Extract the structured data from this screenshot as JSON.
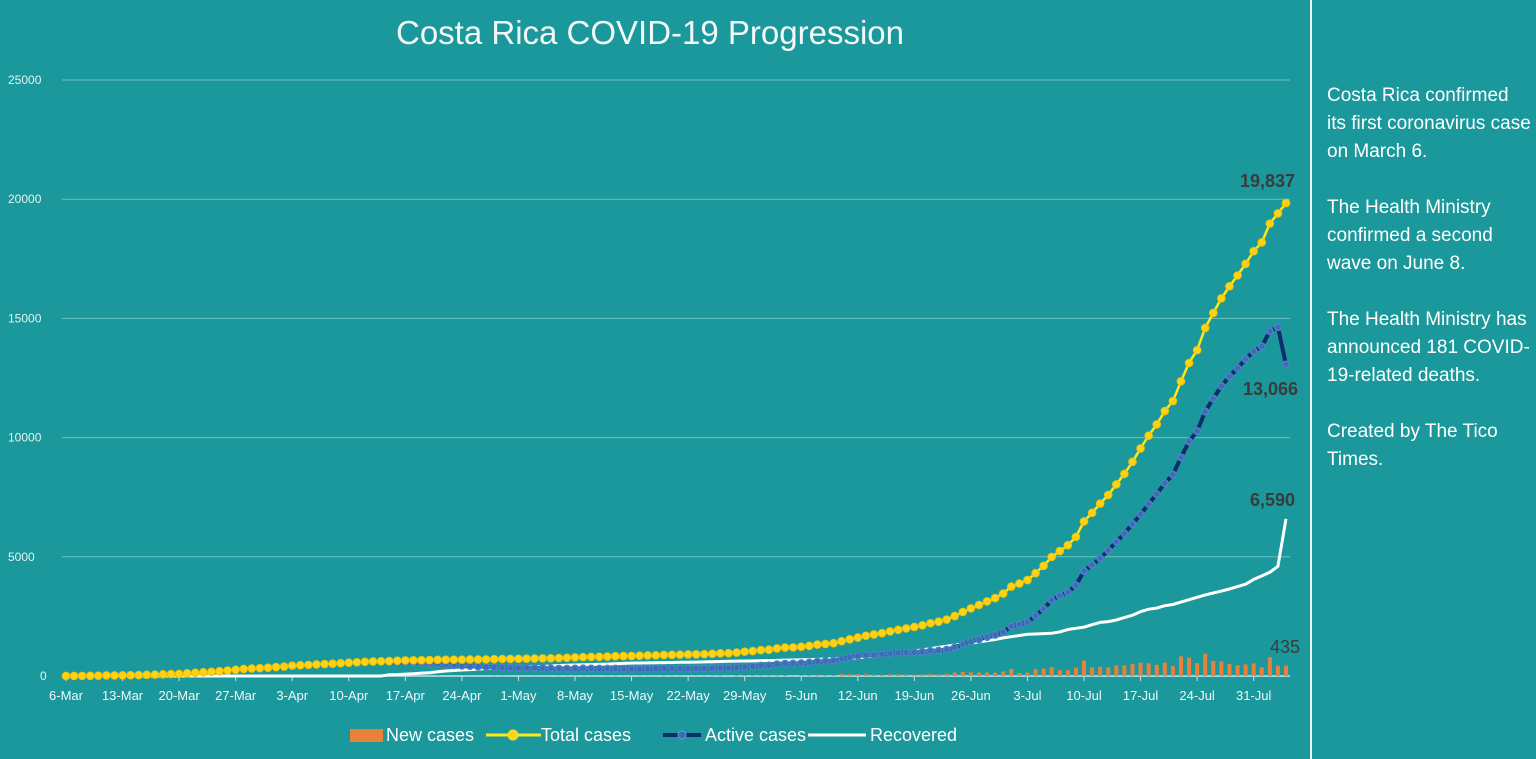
{
  "chart_data": {
    "type": "line",
    "title": "Costa Rica COVID-19 Progression",
    "xlabel": "",
    "ylabel": "",
    "ylim": [
      0,
      25000
    ],
    "y_ticks": [
      "0",
      "5000",
      "10000",
      "15000",
      "20000",
      "25000"
    ],
    "x_range": [
      "6-Mar",
      "4-Aug"
    ],
    "x_tick_labels": [
      "6-Mar",
      "13-Mar",
      "20-Mar",
      "27-Mar",
      "3-Apr",
      "10-Apr",
      "17-Apr",
      "24-Apr",
      "1-May",
      "8-May",
      "15-May",
      "22-May",
      "29-May",
      "5-Jun",
      "12-Jun",
      "19-Jun",
      "26-Jun",
      "3-Jul",
      "10-Jul",
      "17-Jul",
      "24-Jul",
      "31-Jul"
    ],
    "grid": "horizontal",
    "legend_position": "bottom",
    "series": [
      {
        "name": "New cases",
        "type": "bar",
        "color": "#e8813a",
        "last_label": "435",
        "values": [
          1,
          0,
          4,
          4,
          4,
          9,
          1,
          4,
          8,
          6,
          9,
          8,
          11,
          11,
          7,
          26,
          21,
          24,
          19,
          24,
          30,
          32,
          32,
          19,
          16,
          17,
          28,
          21,
          39,
          19,
          13,
          16,
          19,
          16,
          21,
          19,
          19,
          18,
          17,
          6,
          8,
          16,
          13,
          5,
          2,
          7,
          12,
          2,
          3,
          1,
          6,
          2,
          2,
          8,
          8,
          3,
          3,
          6,
          8,
          6,
          3,
          13,
          10,
          15,
          12,
          9,
          3,
          11,
          15,
          5,
          8,
          10,
          10,
          3,
          16,
          8,
          7,
          6,
          8,
          7,
          12,
          21,
          5,
          28,
          38,
          25,
          37,
          21,
          52,
          37,
          6,
          28,
          35,
          55,
          24,
          33,
          86,
          77,
          74,
          76,
          56,
          52,
          75,
          68,
          58,
          61,
          69,
          86,
          64,
          91,
          147,
          169,
          152,
          143,
          151,
          139,
          190,
          294,
          125,
          145,
          288,
          310,
          375,
          245,
          245,
          350,
          649,
          360,
          386,
          365,
          440,
          446,
          504,
          560,
          537,
          468,
          563,
          420,
          827,
          768,
          540,
          931,
          629,
          612,
          503,
          456,
          490,
          530,
          367,
          788,
          427,
          435
        ]
      },
      {
        "name": "Total cases",
        "type": "line",
        "color": "#ffe81a",
        "last_label": "19,837",
        "values": [
          1,
          1,
          5,
          9,
          13,
          22,
          23,
          27,
          35,
          41,
          50,
          58,
          69,
          80,
          87,
          113,
          134,
          158,
          177,
          201,
          231,
          263,
          295,
          314,
          330,
          347,
          375,
          396,
          435,
          454,
          467,
          483,
          502,
          518,
          539,
          558,
          577,
          595,
          612,
          618,
          626,
          642,
          655,
          660,
          662,
          669,
          681,
          683,
          686,
          687,
          693,
          695,
          697,
          705,
          713,
          716,
          719,
          725,
          733,
          739,
          742,
          755,
          765,
          780,
          792,
          801,
          804,
          815,
          830,
          835,
          843,
          853,
          863,
          866,
          882,
          890,
          897,
          903,
          911,
          918,
          930,
          951,
          956,
          984,
          1022,
          1047,
          1084,
          1105,
          1157,
          1194,
          1200,
          1228,
          1263,
          1318,
          1342,
          1375,
          1461,
          1538,
          1612,
          1688,
          1744,
          1796,
          1871,
          1939,
          1997,
          2058,
          2127,
          2213,
          2277,
          2368,
          2515,
          2684,
          2836,
          2979,
          3130,
          3269,
          3459,
          3753,
          3878,
          4023,
          4311,
          4621,
          4996,
          5241,
          5486,
          5836,
          6485,
          6845,
          7231,
          7596,
          8036,
          8482,
          8986,
          9546,
          10083,
          10551,
          11114,
          11534,
          12361,
          13129,
          13669,
          14600,
          15229,
          15841,
          16344,
          16800,
          17290,
          17820,
          18187,
          18975,
          19402,
          19837
        ]
      },
      {
        "name": "Active cases",
        "type": "line",
        "color": "#0e2d6a",
        "marker_color": "#4d82c8",
        "last_label": "13,066",
        "values": [
          1,
          1,
          5,
          9,
          13,
          22,
          23,
          27,
          35,
          41,
          50,
          58,
          69,
          80,
          87,
          113,
          134,
          156,
          175,
          199,
          229,
          261,
          293,
          312,
          328,
          345,
          373,
          394,
          433,
          451,
          464,
          480,
          499,
          515,
          536,
          555,
          574,
          592,
          609,
          615,
          570,
          579,
          571,
          559,
          536,
          523,
          495,
          467,
          450,
          431,
          417,
          399,
          381,
          369,
          362,
          350,
          343,
          339,
          337,
          333,
          316,
          309,
          309,
          314,
          316,
          315,
          308,
          309,
          309,
          299,
          297,
          302,
          307,
          305,
          316,
          319,
          312,
          313,
          316,
          318,
          320,
          331,
          326,
          349,
          382,
          402,
          434,
          445,
          492,
          519,
          520,
          538,
          563,
          608,
          622,
          645,
          716,
          783,
          842,
          876,
          882,
          904,
          939,
          967,
          985,
          996,
          1015,
          1051,
          1065,
          1105,
          1201,
          1330,
          1441,
          1534,
          1634,
          1722,
          1841,
          2085,
          2159,
          2254,
          2529,
          2816,
          3180,
          3363,
          3506,
          3803,
          4399,
          4657,
          4939,
          5270,
          5634,
          5976,
          6374,
          6780,
          7213,
          7626,
          8086,
          8449,
          9171,
          9834,
          10269,
          11093,
          11635,
          12160,
          12564,
          12911,
          13293,
          13617,
          13827,
          14460,
          14632,
          13066
        ]
      },
      {
        "name": "Recovered",
        "type": "line",
        "color": "#ffffff",
        "last_label": "6,590",
        "values": [
          0,
          0,
          0,
          0,
          0,
          0,
          0,
          0,
          0,
          0,
          0,
          0,
          0,
          0,
          0,
          0,
          0,
          0,
          0,
          0,
          0,
          0,
          0,
          0,
          0,
          0,
          0,
          0,
          0,
          0,
          0,
          0,
          0,
          0,
          0,
          0,
          0,
          0,
          0,
          0,
          53,
          60,
          80,
          95,
          120,
          140,
          180,
          210,
          230,
          250,
          270,
          290,
          310,
          330,
          345,
          360,
          370,
          380,
          390,
          400,
          420,
          440,
          450,
          460,
          470,
          480,
          490,
          500,
          515,
          530,
          540,
          545,
          550,
          555,
          560,
          565,
          575,
          580,
          585,
          590,
          600,
          610,
          620,
          625,
          630,
          635,
          640,
          650,
          655,
          665,
          670,
          680,
          690,
          700,
          710,
          720,
          735,
          745,
          760,
          800,
          850,
          880,
          920,
          960,
          1000,
          1050,
          1100,
          1150,
          1200,
          1250,
          1300,
          1340,
          1380,
          1430,
          1480,
          1530,
          1600,
          1650,
          1700,
          1750,
          1760,
          1780,
          1790,
          1850,
          1950,
          2000,
          2050,
          2150,
          2250,
          2280,
          2350,
          2450,
          2550,
          2700,
          2800,
          2850,
          2950,
          3000,
          3100,
          3200,
          3300,
          3400,
          3480,
          3560,
          3650,
          3750,
          3850,
          4050,
          4200,
          4350,
          4600,
          6590
        ]
      }
    ]
  },
  "sidebar": {
    "paragraphs": [
      "Costa Rica confirmed its first coronavirus case on March 6.",
      "The Health Ministry confirmed a second wave on June 8.",
      "The Health Ministry has announced 181 COVID-19-related deaths.",
      "Created by The Tico Times."
    ]
  },
  "colors": {
    "background": "#1a989b",
    "gridline": "#6dc0c2"
  }
}
